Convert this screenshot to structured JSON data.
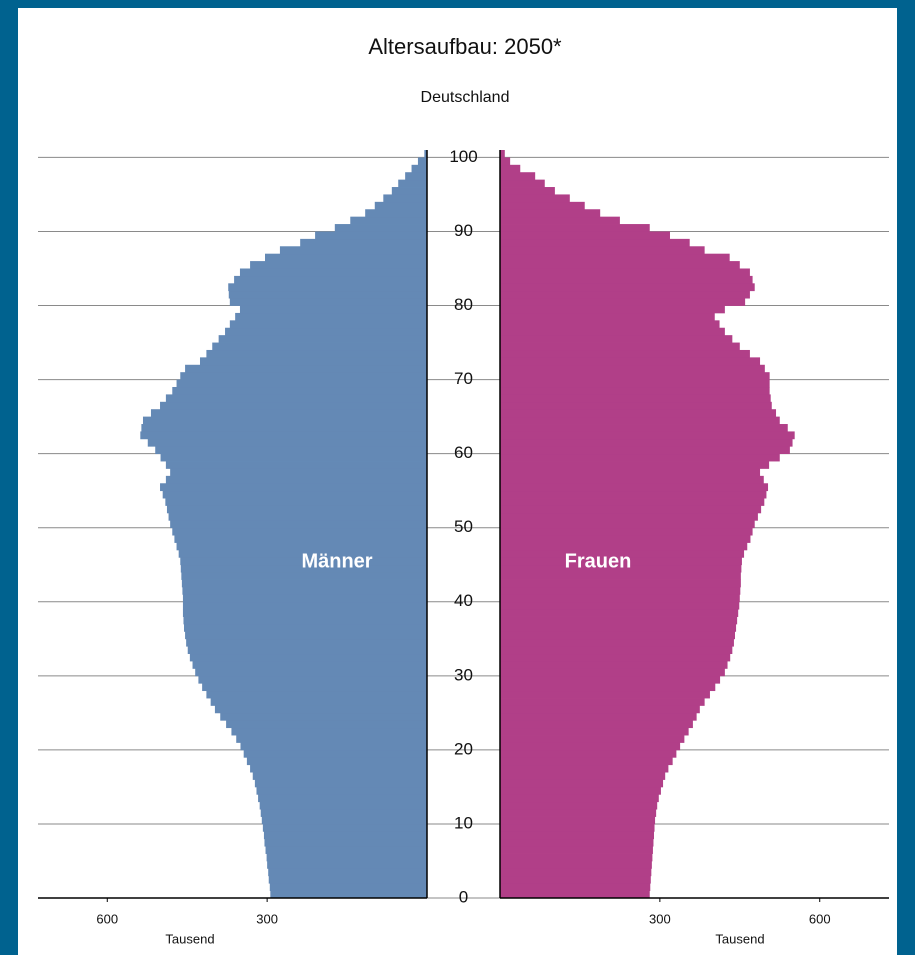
{
  "chart_data": {
    "type": "population_pyramid",
    "title": "Altersaufbau: 2050*",
    "subtitle": "Deutschland",
    "x_label": "Tausend",
    "y": [
      0,
      1,
      2,
      3,
      4,
      5,
      6,
      7,
      8,
      9,
      10,
      11,
      12,
      13,
      14,
      15,
      16,
      17,
      18,
      19,
      20,
      21,
      22,
      23,
      24,
      25,
      26,
      27,
      28,
      29,
      30,
      31,
      32,
      33,
      34,
      35,
      36,
      37,
      38,
      39,
      40,
      41,
      42,
      43,
      44,
      45,
      46,
      47,
      48,
      49,
      50,
      51,
      52,
      53,
      54,
      55,
      56,
      57,
      58,
      59,
      60,
      61,
      62,
      63,
      64,
      65,
      66,
      67,
      68,
      69,
      70,
      71,
      72,
      73,
      74,
      75,
      76,
      77,
      78,
      79,
      80,
      81,
      82,
      83,
      84,
      85,
      86,
      87,
      88,
      89,
      90,
      91,
      92,
      93,
      94,
      95,
      96,
      97,
      98,
      99,
      100
    ],
    "series": [
      {
        "name": "Männer",
        "color": "#6489b5",
        "side": "left",
        "values": [
          294,
          295,
          297,
          298,
          300,
          301,
          303,
          305,
          306,
          308,
          310,
          312,
          314,
          317,
          320,
          323,
          327,
          332,
          338,
          344,
          350,
          358,
          367,
          377,
          388,
          398,
          406,
          414,
          422,
          429,
          435,
          440,
          445,
          449,
          452,
          454,
          456,
          457,
          458,
          458,
          458,
          459,
          460,
          461,
          462,
          463,
          466,
          470,
          474,
          478,
          482,
          485,
          488,
          491,
          496,
          501,
          490,
          482,
          490,
          500,
          510,
          524,
          538,
          536,
          533,
          518,
          501,
          490,
          478,
          470,
          463,
          454,
          426,
          414,
          403,
          391,
          379,
          370,
          360,
          351,
          370,
          372,
          373,
          362,
          351,
          332,
          304,
          276,
          238,
          210,
          173,
          144,
          116,
          98,
          82,
          66,
          54,
          41,
          29,
          17,
          5
        ]
      },
      {
        "name": "Frauen",
        "color": "#b13f88",
        "side": "right",
        "values": [
          281,
          282,
          283,
          284,
          285,
          286,
          287,
          288,
          289,
          290,
          291,
          293,
          295,
          298,
          302,
          306,
          310,
          316,
          324,
          331,
          338,
          346,
          354,
          362,
          369,
          375,
          384,
          394,
          404,
          413,
          422,
          427,
          432,
          436,
          439,
          441,
          443,
          445,
          447,
          449,
          450,
          451,
          452,
          452,
          453,
          454,
          458,
          464,
          470,
          474,
          478,
          484,
          490,
          496,
          500,
          503,
          495,
          488,
          505,
          525,
          544,
          549,
          553,
          540,
          525,
          518,
          510,
          508,
          506,
          506,
          506,
          497,
          488,
          469,
          450,
          436,
          422,
          412,
          403,
          422,
          460,
          469,
          478,
          474,
          469,
          450,
          431,
          384,
          356,
          319,
          281,
          225,
          188,
          159,
          131,
          103,
          84,
          66,
          38,
          19,
          9
        ]
      }
    ],
    "xlim": [
      0,
      730
    ],
    "xticks": [
      300,
      600
    ],
    "ylim": [
      0,
      101
    ],
    "yticks": [
      0,
      10,
      20,
      30,
      40,
      50,
      60,
      70,
      80,
      90,
      100
    ],
    "grid": true
  }
}
